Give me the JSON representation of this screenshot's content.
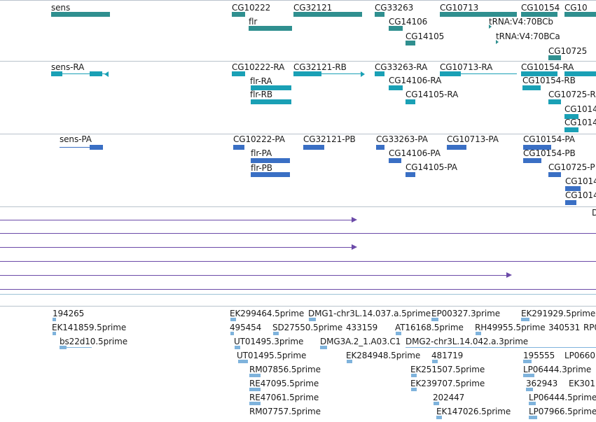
{
  "colors": {
    "gene": "#2f8f8f",
    "transcript": "#1aa0b5",
    "protein": "#3a6fc4",
    "alignment": "#6b4aa8",
    "est": "#7fb3dc"
  },
  "genes": [
    {
      "name": "sens"
    },
    {
      "name": "CG10222"
    },
    {
      "name": "CG32121"
    },
    {
      "name": "CG33263"
    },
    {
      "name": "CG10713"
    },
    {
      "name": "CG10154"
    },
    {
      "name": "CG10"
    },
    {
      "name": "flr"
    },
    {
      "name": "CG14106"
    },
    {
      "name": "tRNA:V4:70BCb"
    },
    {
      "name": "CG14105"
    },
    {
      "name": "tRNA:V4:70BCa"
    },
    {
      "name": "CG10725"
    }
  ],
  "transcripts": [
    {
      "name": "sens-RA"
    },
    {
      "name": "CG10222-RA"
    },
    {
      "name": "CG32121-RB"
    },
    {
      "name": "CG33263-RA"
    },
    {
      "name": "CG10713-RA"
    },
    {
      "name": "CG10154-RA"
    },
    {
      "name": "flr-RA"
    },
    {
      "name": "CG14106-RA"
    },
    {
      "name": "CG10154-RB"
    },
    {
      "name": "flr-RB"
    },
    {
      "name": "CG14105-RA"
    },
    {
      "name": "CG10725-R"
    },
    {
      "name": "CG1014"
    },
    {
      "name": "CG1014"
    }
  ],
  "proteins": [
    {
      "name": "sens-PA"
    },
    {
      "name": "CG10222-PA"
    },
    {
      "name": "CG32121-PB"
    },
    {
      "name": "CG33263-PA"
    },
    {
      "name": "CG10713-PA"
    },
    {
      "name": "CG10154-PA"
    },
    {
      "name": "flr-PA"
    },
    {
      "name": "CG14106-PA"
    },
    {
      "name": "CG10154-PB"
    },
    {
      "name": "flr-PB"
    },
    {
      "name": "CG14105-PA"
    },
    {
      "name": "CG10725-P"
    },
    {
      "name": "CG1014"
    },
    {
      "name": "CG1014"
    }
  ],
  "alignment_label": "D",
  "ests": [
    {
      "name": "194265"
    },
    {
      "name": "EK299464.5prime"
    },
    {
      "name": "DMG1-chr3L.14.037.a.5prime"
    },
    {
      "name": "EP00327.3prime"
    },
    {
      "name": "EK291929.5prime"
    },
    {
      "name": "EK141859.5prime"
    },
    {
      "name": "495454"
    },
    {
      "name": "SD27550.5prime"
    },
    {
      "name": "433159"
    },
    {
      "name": "AT16168.5prime"
    },
    {
      "name": "RH49955.5prime"
    },
    {
      "name": "340531"
    },
    {
      "name": "RP0"
    },
    {
      "name": "bs22d10.5prime"
    },
    {
      "name": "UT01495.3prime"
    },
    {
      "name": "DMG3A.2_1.A03.C1"
    },
    {
      "name": "DMG2-chr3L.14.042.a.3prime"
    },
    {
      "name": "UT01495.5prime"
    },
    {
      "name": "EK284948.5prime"
    },
    {
      "name": "481719"
    },
    {
      "name": "195555"
    },
    {
      "name": "LP0660"
    },
    {
      "name": "RM07856.5prime"
    },
    {
      "name": "EK251507.5prime"
    },
    {
      "name": "LP06444.3prime"
    },
    {
      "name": "RE47095.5prime"
    },
    {
      "name": "EK239707.5prime"
    },
    {
      "name": "362943"
    },
    {
      "name": "EK301"
    },
    {
      "name": "RE47061.5prime"
    },
    {
      "name": "202447"
    },
    {
      "name": "LP06444.5prime"
    },
    {
      "name": "RM07757.5prime"
    },
    {
      "name": "EK147026.5prime"
    },
    {
      "name": "LP07966.5prime"
    }
  ]
}
